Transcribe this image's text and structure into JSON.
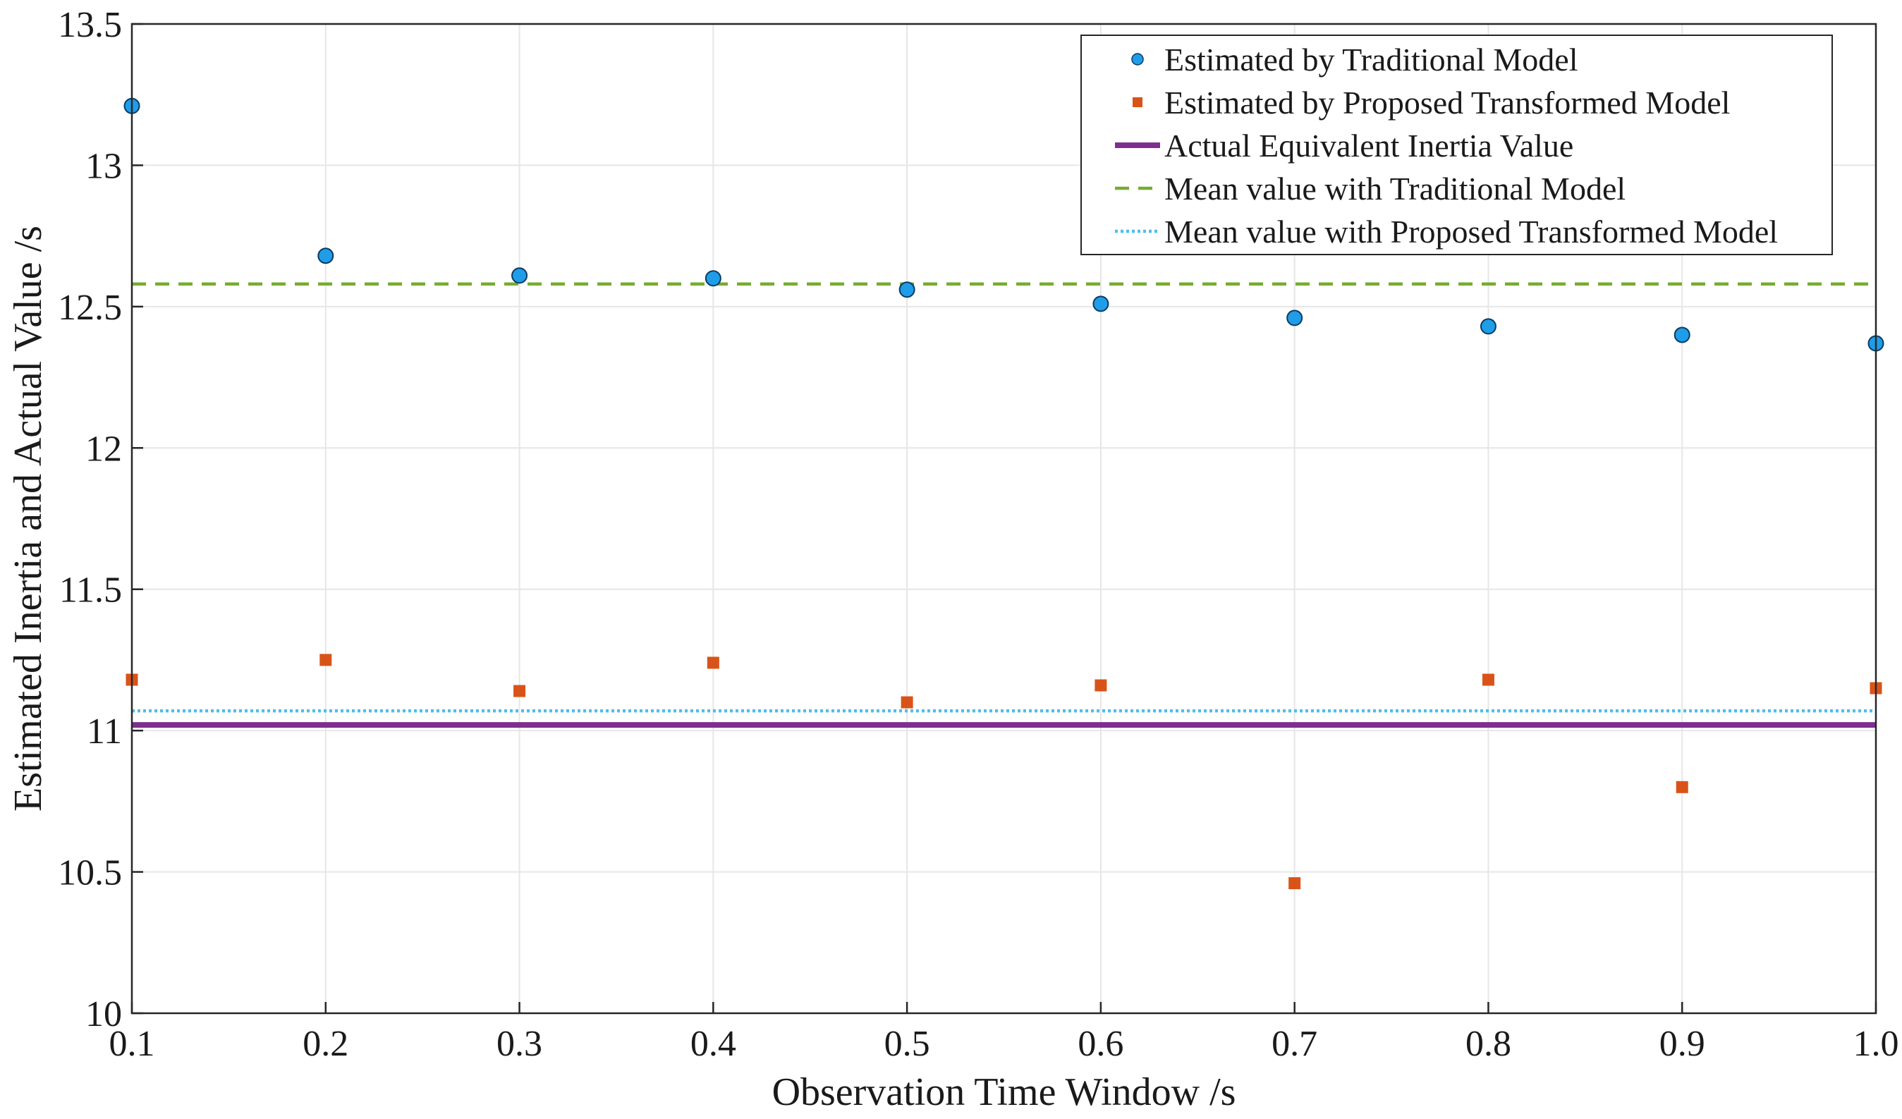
{
  "chart_data": {
    "type": "scatter",
    "title": "",
    "xlabel": "Observation Time Window /s",
    "ylabel": "Estimated Inertia and Actual Value /s",
    "xlim": [
      0.1,
      1.0
    ],
    "ylim": [
      10,
      13.5
    ],
    "grid": true,
    "legend_position": "top-right",
    "x_ticks": [
      "0.1",
      "0.2",
      "0.3",
      "0.4",
      "0.5",
      "0.6",
      "0.7",
      "0.8",
      "0.9",
      "1.0"
    ],
    "y_ticks": [
      "10",
      "10.5",
      "11",
      "11.5",
      "12",
      "12.5",
      "13",
      "13.5"
    ],
    "x": [
      0.1,
      0.2,
      0.3,
      0.4,
      0.5,
      0.6,
      0.7,
      0.8,
      0.9,
      1.0
    ],
    "series": [
      {
        "name": "Estimated by Traditional Model",
        "kind": "scatter-circle",
        "color": "#1f9de8",
        "values": [
          13.21,
          12.68,
          12.61,
          12.6,
          12.56,
          12.51,
          12.46,
          12.43,
          12.4,
          12.37
        ]
      },
      {
        "name": "Estimated by Proposed Transformed Model",
        "kind": "scatter-square",
        "color": "#d95319",
        "values": [
          11.18,
          11.25,
          11.14,
          11.24,
          11.1,
          11.16,
          10.46,
          11.18,
          10.8,
          11.15
        ]
      },
      {
        "name": "Actual Equivalent Inertia Value",
        "kind": "hline-solid",
        "color": "#7e2f8e",
        "value": 11.02
      },
      {
        "name": "Mean value with Traditional Model",
        "kind": "hline-dashed",
        "color": "#77ac30",
        "value": 12.58
      },
      {
        "name": "Mean value with Proposed Transformed Model",
        "kind": "hline-dotted",
        "color": "#4dbeee",
        "value": 11.07
      }
    ]
  }
}
